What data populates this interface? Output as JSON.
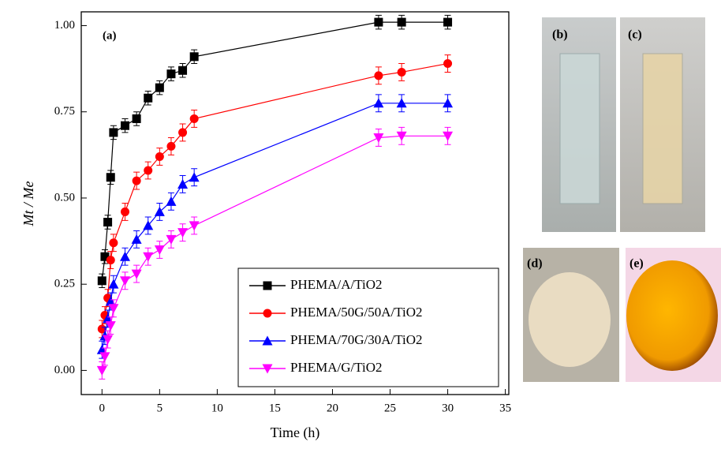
{
  "chart_data": {
    "type": "line",
    "annotation": "(a)",
    "xlabel": "Time (h)",
    "ylabel": "Mt / Me",
    "xlim": [
      -1.8,
      35.3
    ],
    "ylim": [
      -0.07,
      1.04
    ],
    "xticks": [
      0,
      5,
      10,
      15,
      20,
      25,
      30,
      35
    ],
    "yticks": [
      {
        "value": 0,
        "label": "0.00"
      },
      {
        "value": 0.25,
        "label": "0.25"
      },
      {
        "value": 0.5,
        "label": "0.50"
      },
      {
        "value": 0.75,
        "label": "0.75"
      },
      {
        "value": 1,
        "label": "1.00"
      }
    ],
    "series": [
      {
        "name": "PHEMA/A/TiO2",
        "color": "#000000",
        "marker": "square",
        "error": 0.02,
        "x": [
          0,
          0.25,
          0.5,
          0.75,
          1,
          2,
          3,
          4,
          5,
          6,
          7,
          8,
          24,
          26,
          30
        ],
        "values": [
          0.26,
          0.33,
          0.43,
          0.56,
          0.69,
          0.71,
          0.73,
          0.79,
          0.82,
          0.86,
          0.87,
          0.91,
          1.01,
          1.01,
          1.01
        ]
      },
      {
        "name": "PHEMA/50G/50A/TiO2",
        "color": "#ff0000",
        "marker": "circle",
        "error": 0.025,
        "x": [
          0,
          0.25,
          0.5,
          0.75,
          1,
          2,
          3,
          4,
          5,
          6,
          7,
          8,
          24,
          26,
          30
        ],
        "values": [
          0.12,
          0.16,
          0.21,
          0.32,
          0.37,
          0.46,
          0.55,
          0.58,
          0.62,
          0.65,
          0.69,
          0.73,
          0.855,
          0.865,
          0.89
        ]
      },
      {
        "name": "PHEMA/70G/30A/TiO2",
        "color": "#0000ff",
        "marker": "triangle",
        "error": 0.025,
        "x": [
          0,
          0.25,
          0.5,
          0.75,
          1,
          2,
          3,
          4,
          5,
          6,
          7,
          8,
          24,
          26,
          30
        ],
        "values": [
          0.06,
          0.1,
          0.15,
          0.2,
          0.25,
          0.33,
          0.38,
          0.42,
          0.46,
          0.49,
          0.54,
          0.56,
          0.775,
          0.775,
          0.775
        ]
      },
      {
        "name": "PHEMA/G/TiO2",
        "color": "#ff00ff",
        "marker": "triangle-down",
        "error": 0.025,
        "x": [
          0,
          0.25,
          0.5,
          0.75,
          1,
          2,
          3,
          4,
          5,
          6,
          7,
          8,
          24,
          26,
          30
        ],
        "values": [
          0,
          0.04,
          0.09,
          0.13,
          0.18,
          0.26,
          0.28,
          0.33,
          0.35,
          0.38,
          0.4,
          0.42,
          0.675,
          0.68,
          0.68
        ]
      }
    ]
  },
  "photos": [
    "(b)",
    "(c)",
    "(d)",
    "(e)"
  ]
}
